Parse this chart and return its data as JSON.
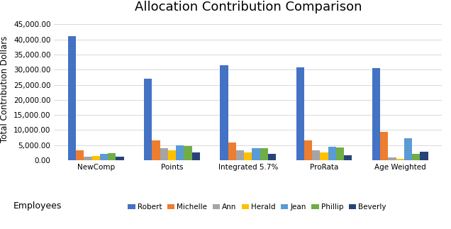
{
  "title": "Allocation Contribution Comparison",
  "xlabel": "Employees",
  "ylabel": "Total Contribution Dollars",
  "categories": [
    "NewComp",
    "Points",
    "Integrated 5.7%",
    "ProRata",
    "Age Weighted"
  ],
  "employees": [
    "Robert",
    "Michelle",
    "Ann",
    "Herald",
    "Jean",
    "Phillip",
    "Beverly"
  ],
  "colors": [
    "#4472C4",
    "#ED7D31",
    "#A5A5A5",
    "#FFC000",
    "#5B9BD5",
    "#70AD47",
    "#264478"
  ],
  "data": {
    "Robert": [
      41000,
      27000,
      31500,
      30800,
      30500
    ],
    "Michelle": [
      3200,
      6700,
      5800,
      6500,
      9500
    ],
    "Ann": [
      1300,
      4000,
      3200,
      3200,
      900
    ],
    "Herald": [
      1400,
      3300,
      2700,
      2700,
      500
    ],
    "Jean": [
      2200,
      5000,
      4000,
      4500,
      7200
    ],
    "Phillip": [
      2300,
      4800,
      4000,
      4200,
      2100
    ],
    "Beverly": [
      1100,
      2700,
      2100,
      1700,
      2800
    ]
  },
  "ylim": [
    0,
    47000
  ],
  "yticks": [
    0,
    5000,
    10000,
    15000,
    20000,
    25000,
    30000,
    35000,
    40000,
    45000
  ],
  "background_color": "#FFFFFF",
  "grid_color": "#D9D9D9",
  "title_fontsize": 13,
  "axis_label_fontsize": 8.5,
  "tick_fontsize": 7.5,
  "legend_fontsize": 7.5
}
